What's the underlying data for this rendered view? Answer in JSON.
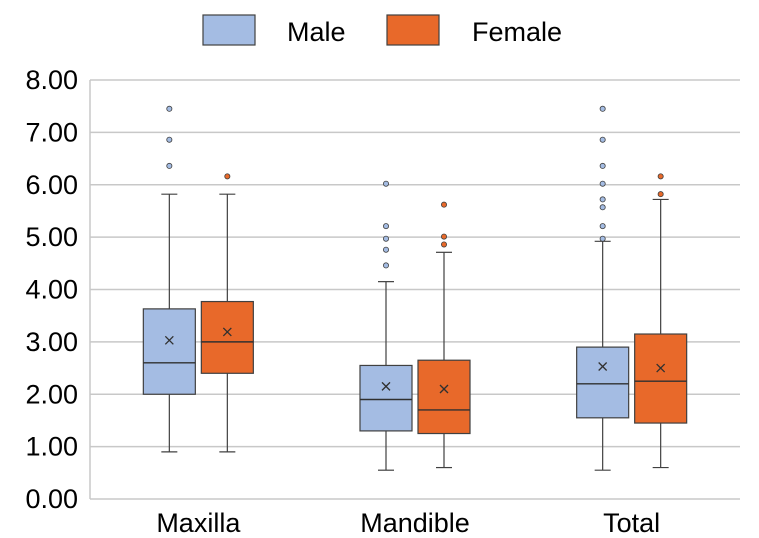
{
  "chart_data": {
    "type": "box",
    "categories": [
      "Maxilla",
      "Mandible",
      "Total"
    ],
    "ylim": [
      0,
      8
    ],
    "y_ticks": [
      "0.00",
      "1.00",
      "2.00",
      "3.00",
      "4.00",
      "5.00",
      "6.00",
      "7.00",
      "8.00"
    ],
    "grid": true,
    "legend_position": "top",
    "series": [
      {
        "name": "Male",
        "color": "#a4bce3",
        "boxes": [
          {
            "min": 0.9,
            "q1": 2.0,
            "median": 2.6,
            "q3": 3.63,
            "max": 5.82,
            "mean": 3.03,
            "outliers": [
              6.36,
              6.86,
              7.45
            ]
          },
          {
            "min": 0.55,
            "q1": 1.3,
            "median": 1.9,
            "q3": 2.55,
            "max": 4.15,
            "mean": 2.15,
            "outliers": [
              4.46,
              4.76,
              4.97,
              5.21,
              6.02
            ]
          },
          {
            "min": 0.55,
            "q1": 1.55,
            "median": 2.2,
            "q3": 2.9,
            "max": 4.92,
            "mean": 2.53,
            "outliers": [
              4.97,
              5.21,
              5.57,
              5.72,
              6.02,
              6.36,
              6.86,
              7.45
            ]
          }
        ]
      },
      {
        "name": "Female",
        "color": "#e8692a",
        "boxes": [
          {
            "min": 0.9,
            "q1": 2.4,
            "median": 3.0,
            "q3": 3.77,
            "max": 5.82,
            "mean": 3.19,
            "outliers": [
              6.16
            ]
          },
          {
            "min": 0.6,
            "q1": 1.25,
            "median": 1.7,
            "q3": 2.65,
            "max": 4.71,
            "mean": 2.1,
            "outliers": [
              4.86,
              5.01,
              5.62
            ]
          },
          {
            "min": 0.6,
            "q1": 1.45,
            "median": 2.25,
            "q3": 3.15,
            "max": 5.72,
            "mean": 2.5,
            "outliers": [
              5.82,
              6.16
            ]
          }
        ]
      }
    ]
  }
}
